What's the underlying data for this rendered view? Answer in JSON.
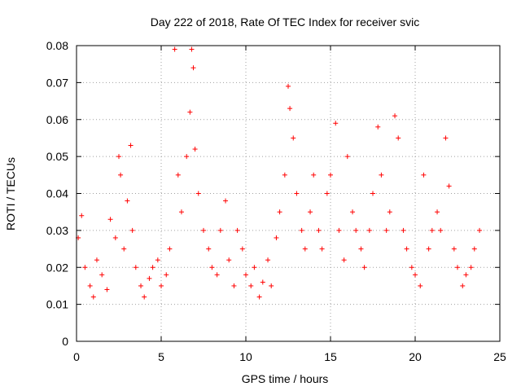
{
  "chart_data": {
    "type": "scatter",
    "title": "Day 222 of 2018, Rate Of TEC Index for receiver svic",
    "xlabel": "GPS time / hours",
    "ylabel": "ROTI / TECUs",
    "xlim": [
      0,
      25
    ],
    "ylim": [
      0,
      0.08
    ],
    "xticks": [
      "0",
      "5",
      "10",
      "15",
      "20",
      "25"
    ],
    "yticks": [
      "0",
      "0.01",
      "0.02",
      "0.03",
      "0.04",
      "0.05",
      "0.06",
      "0.07",
      "0.08"
    ],
    "grid": true,
    "marker": "+",
    "color": "#ff0000",
    "series": [
      {
        "name": "ROTI",
        "x": [
          0.1,
          0.3,
          0.5,
          0.8,
          1.0,
          1.2,
          1.5,
          1.8,
          2.0,
          2.3,
          2.5,
          2.6,
          2.8,
          3.0,
          3.2,
          3.3,
          3.5,
          3.8,
          4.0,
          4.3,
          4.5,
          4.8,
          5.0,
          5.3,
          5.5,
          5.8,
          6.0,
          6.2,
          6.5,
          6.7,
          6.8,
          6.9,
          7.0,
          7.2,
          7.5,
          7.8,
          8.0,
          8.3,
          8.5,
          8.8,
          9.0,
          9.3,
          9.5,
          9.8,
          10.0,
          10.3,
          10.5,
          10.8,
          11.0,
          11.3,
          11.5,
          11.8,
          12.0,
          12.3,
          12.5,
          12.6,
          12.8,
          13.0,
          13.3,
          13.5,
          13.8,
          14.0,
          14.3,
          14.5,
          14.8,
          15.0,
          15.3,
          15.5,
          15.8,
          16.0,
          16.3,
          16.5,
          16.8,
          17.0,
          17.3,
          17.5,
          17.8,
          18.0,
          18.3,
          18.5,
          18.8,
          19.0,
          19.3,
          19.5,
          19.8,
          20.0,
          20.3,
          20.5,
          20.8,
          21.0,
          21.3,
          21.5,
          21.8,
          22.0,
          22.3,
          22.5,
          22.8,
          23.0,
          23.3,
          23.5,
          23.8
        ],
        "y": [
          0.028,
          0.034,
          0.02,
          0.015,
          0.012,
          0.022,
          0.018,
          0.014,
          0.033,
          0.028,
          0.05,
          0.045,
          0.025,
          0.038,
          0.053,
          0.03,
          0.02,
          0.015,
          0.012,
          0.017,
          0.02,
          0.022,
          0.015,
          0.018,
          0.025,
          0.079,
          0.045,
          0.035,
          0.05,
          0.062,
          0.079,
          0.074,
          0.052,
          0.04,
          0.03,
          0.025,
          0.02,
          0.018,
          0.03,
          0.038,
          0.022,
          0.015,
          0.03,
          0.025,
          0.018,
          0.015,
          0.02,
          0.012,
          0.016,
          0.022,
          0.015,
          0.028,
          0.035,
          0.045,
          0.069,
          0.063,
          0.055,
          0.04,
          0.03,
          0.025,
          0.035,
          0.045,
          0.03,
          0.025,
          0.04,
          0.045,
          0.059,
          0.03,
          0.022,
          0.05,
          0.035,
          0.03,
          0.025,
          0.02,
          0.03,
          0.04,
          0.058,
          0.045,
          0.03,
          0.035,
          0.061,
          0.055,
          0.03,
          0.025,
          0.02,
          0.018,
          0.015,
          0.045,
          0.025,
          0.03,
          0.035,
          0.03,
          0.055,
          0.042,
          0.025,
          0.02,
          0.015,
          0.018,
          0.02,
          0.025,
          0.03
        ]
      }
    ]
  }
}
